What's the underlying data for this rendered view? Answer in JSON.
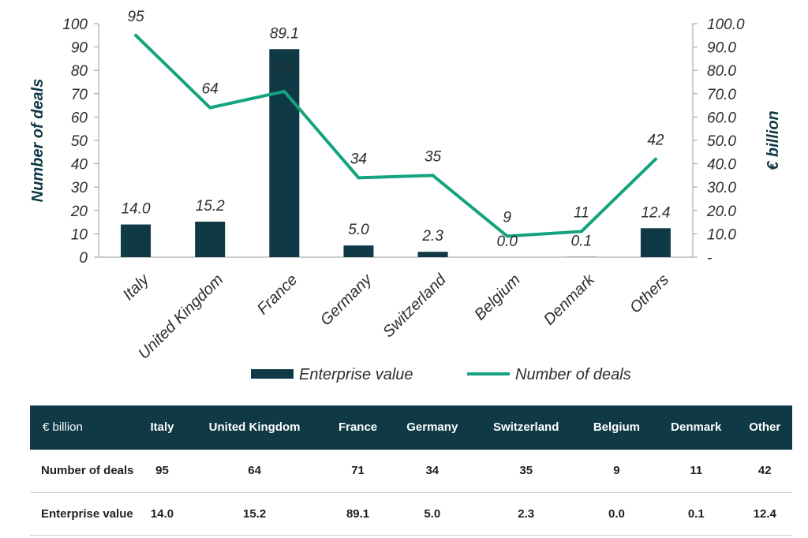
{
  "colors": {
    "bar": "#0e3945",
    "line": "#14a37f",
    "text": "#2d2d2d",
    "header_bg": "#0e3945"
  },
  "chart_data": {
    "type": "bar+line",
    "categories": [
      "Italy",
      "United Kingdom",
      "France",
      "Germany",
      "Switzerland",
      "Belgium",
      "Denmark",
      "Others"
    ],
    "series": [
      {
        "name": "Enterprise value",
        "type": "bar",
        "axis": "right",
        "values": [
          14.0,
          15.2,
          89.1,
          5.0,
          2.3,
          0.0,
          0.1,
          12.4
        ],
        "labels": [
          "14.0",
          "15.2",
          "89.1",
          "5.0",
          "2.3",
          "0.0",
          "0.1",
          "12.4"
        ]
      },
      {
        "name": "Number of deals",
        "type": "line",
        "axis": "left",
        "values": [
          95,
          64,
          71,
          34,
          35,
          9,
          11,
          42
        ],
        "labels": [
          "95",
          "64",
          "71",
          "34",
          "35",
          "9",
          "11",
          "42"
        ]
      }
    ],
    "left_axis": {
      "label": "Number of deals",
      "range": [
        0,
        100
      ],
      "ticks": [
        "0",
        "10",
        "20",
        "30",
        "40",
        "50",
        "60",
        "70",
        "80",
        "90",
        "100"
      ]
    },
    "right_axis": {
      "label": "€ billion",
      "range": [
        0,
        100
      ],
      "ticks": [
        "-",
        "10.0",
        "20.0",
        "30.0",
        "40.0",
        "50.0",
        "60.0",
        "70.0",
        "80.0",
        "90.0",
        "100.0"
      ]
    },
    "legend": [
      "Enterprise value",
      "Number of deals"
    ]
  },
  "table": {
    "header_label": "€ billion",
    "columns": [
      "Italy",
      "United Kingdom",
      "France",
      "Germany",
      "Switzerland",
      "Belgium",
      "Denmark",
      "Other"
    ],
    "rows": [
      {
        "label": "Number of deals",
        "values": [
          "95",
          "64",
          "71",
          "34",
          "35",
          "9",
          "11",
          "42"
        ]
      },
      {
        "label": "Enterprise value",
        "values": [
          "14.0",
          "15.2",
          "89.1",
          "5.0",
          "2.3",
          "0.0",
          "0.1",
          "12.4"
        ]
      }
    ]
  }
}
